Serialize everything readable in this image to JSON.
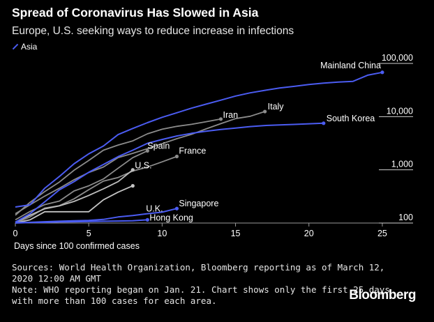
{
  "header": {
    "title": "Spread of Coronavirus Has Slowed in Asia",
    "subtitle": "Europe, U.S. seeking ways to reduce increase in infections",
    "legend_label": "Asia"
  },
  "footer": {
    "sources_line1": "Sources: World Health Organization, Bloomberg reporting as of March 12,",
    "sources_line2": "2020 12:00 AM GMT",
    "note_line1": "Note: WHO reporting began on Jan. 21. Chart shows only the first 25 days",
    "note_line2": "with more than 100 cases for each area.",
    "brand": "Bloomberg"
  },
  "chart_data": {
    "type": "line",
    "xlabel": "Days since 100 confirmed cases",
    "ylabel": "",
    "xlim": [
      0,
      27
    ],
    "ylim": [
      100,
      100000
    ],
    "yscale": "log",
    "x_ticks": [
      0,
      5,
      10,
      15,
      20,
      25
    ],
    "y_ticks": [
      100,
      1000,
      10000,
      100000
    ],
    "y_tick_labels": [
      "100",
      "1,000",
      "10,000",
      "100,000"
    ],
    "grid": false,
    "legend_position": "top-left",
    "colors": {
      "asia": "#4b5cf2",
      "other": "#8c8c8c",
      "us": "#bdbdbd",
      "uk": "#c4c4c4"
    },
    "series": [
      {
        "name": "Mainland China",
        "group": "asia",
        "x": [
          0,
          1,
          2,
          3,
          4,
          5,
          6,
          7,
          8,
          9,
          10,
          11,
          12,
          13,
          14,
          15,
          16,
          17,
          18,
          19,
          20,
          21,
          22,
          23,
          24,
          25
        ],
        "y": [
          200,
          220,
          450,
          750,
          1300,
          2000,
          2800,
          4600,
          6000,
          7700,
          9700,
          11800,
          14400,
          17200,
          20400,
          24400,
          28000,
          31200,
          34500,
          37100,
          40200,
          42600,
          44600,
          46000,
          60000,
          68000
        ]
      },
      {
        "name": "South Korea",
        "group": "asia",
        "x": [
          0,
          1,
          2,
          3,
          4,
          5,
          6,
          7,
          8,
          9,
          10,
          11,
          12,
          13,
          14,
          15,
          16,
          17,
          18,
          19,
          20,
          21
        ],
        "y": [
          104,
          150,
          250,
          420,
          600,
          900,
          1260,
          1770,
          2340,
          3150,
          3720,
          4330,
          4850,
          5330,
          5750,
          6100,
          6500,
          6800,
          7000,
          7130,
          7330,
          7510
        ]
      },
      {
        "name": "Singapore",
        "group": "asia",
        "x": [
          0,
          1,
          2,
          3,
          4,
          5,
          6,
          7,
          8,
          9,
          10,
          11
        ],
        "y": [
          102,
          103,
          106,
          108,
          110,
          112,
          117,
          130,
          138,
          150,
          160,
          187
        ]
      },
      {
        "name": "Hong Kong",
        "group": "asia",
        "x": [
          0,
          1,
          2,
          3,
          4,
          5,
          6,
          7,
          8,
          9
        ],
        "y": [
          100,
          102,
          103,
          105,
          106,
          107,
          108,
          109,
          110,
          115
        ]
      },
      {
        "name": "Italy",
        "group": "other",
        "x": [
          0,
          1,
          2,
          3,
          4,
          5,
          6,
          7,
          8,
          9,
          10,
          11,
          12,
          13,
          14,
          15,
          16,
          17
        ],
        "y": [
          150,
          220,
          320,
          450,
          650,
          890,
          1130,
          1700,
          2040,
          2500,
          3100,
          3850,
          4640,
          5880,
          7380,
          9170,
          10150,
          12460
        ]
      },
      {
        "name": "Iran",
        "group": "other",
        "x": [
          0,
          1,
          2,
          3,
          4,
          5,
          6,
          7,
          8,
          9,
          10,
          11,
          12,
          13,
          14
        ],
        "y": [
          140,
          245,
          390,
          590,
          980,
          1500,
          2340,
          2920,
          3500,
          4750,
          5800,
          6560,
          7160,
          8040,
          9000
        ]
      },
      {
        "name": "Spain",
        "group": "other",
        "x": [
          0,
          1,
          2,
          3,
          4,
          5,
          6,
          7,
          8,
          9
        ],
        "y": [
          115,
          165,
          222,
          259,
          400,
          500,
          673,
          1073,
          1695,
          2277
        ]
      },
      {
        "name": "France",
        "group": "other",
        "x": [
          0,
          1,
          2,
          3,
          4,
          5,
          6,
          7,
          8,
          9,
          10,
          11
        ],
        "y": [
          100,
          130,
          191,
          212,
          285,
          423,
          613,
          716,
          949,
          1126,
          1412,
          1784
        ]
      },
      {
        "name": "U.S.",
        "group": "us",
        "x": [
          0,
          1,
          2,
          3,
          4,
          5,
          6,
          7,
          8
        ],
        "y": [
          104,
          140,
          185,
          210,
          255,
          330,
          440,
          600,
          1000
        ]
      },
      {
        "name": "U.K.",
        "group": "uk",
        "x": [
          0,
          1,
          2,
          3,
          4,
          5,
          6,
          7,
          8
        ],
        "y": [
          100,
          115,
          163,
          163,
          163,
          163,
          273,
          380,
          500
        ]
      }
    ],
    "annotations": [
      "Mainland China",
      "South Korea",
      "Italy",
      "Iran",
      "Spain",
      "France",
      "U.S.",
      "U.K.",
      "Singapore",
      "Hong Kong"
    ]
  }
}
